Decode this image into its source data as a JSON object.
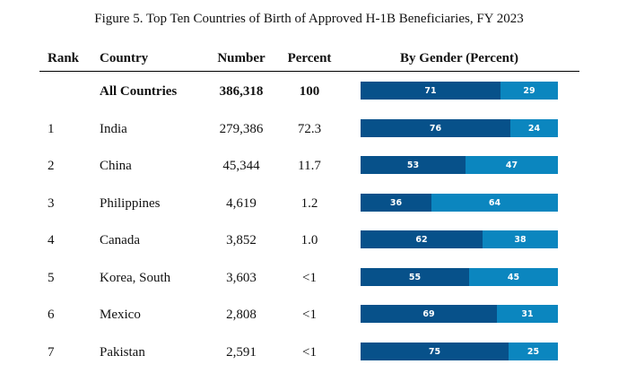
{
  "title": "Figure 5. Top Ten Countries of Birth of Approved H-1B Beneficiaries, FY 2023",
  "headers": {
    "rank": "Rank",
    "country": "Country",
    "number": "Number",
    "percent": "Percent",
    "gender": "By Gender (Percent)"
  },
  "colors": {
    "male": "#07518a",
    "female": "#0b86bf"
  },
  "chart_data": {
    "type": "bar",
    "stacked": true,
    "orientation": "horizontal",
    "title": "Figure 5. Top Ten Countries of Birth of Approved H-1B Beneficiaries, FY 2023",
    "series_label": "By Gender (Percent)",
    "rows": [
      {
        "rank": "",
        "country": "All Countries",
        "number": "386,318",
        "percent": "100",
        "male": 71,
        "female": 29
      },
      {
        "rank": "1",
        "country": "India",
        "number": "279,386",
        "percent": "72.3",
        "male": 76,
        "female": 24
      },
      {
        "rank": "2",
        "country": "China",
        "number": "45,344",
        "percent": "11.7",
        "male": 53,
        "female": 47
      },
      {
        "rank": "3",
        "country": "Philippines",
        "number": "4,619",
        "percent": "1.2",
        "male": 36,
        "female": 64
      },
      {
        "rank": "4",
        "country": "Canada",
        "number": "3,852",
        "percent": "1.0",
        "male": 62,
        "female": 38
      },
      {
        "rank": "5",
        "country": "Korea, South",
        "number": "3,603",
        "percent": "<1",
        "male": 55,
        "female": 45
      },
      {
        "rank": "6",
        "country": "Mexico",
        "number": "2,808",
        "percent": "<1",
        "male": 69,
        "female": 31
      },
      {
        "rank": "7",
        "country": "Pakistan",
        "number": "2,591",
        "percent": "<1",
        "male": 75,
        "female": 25
      }
    ]
  }
}
